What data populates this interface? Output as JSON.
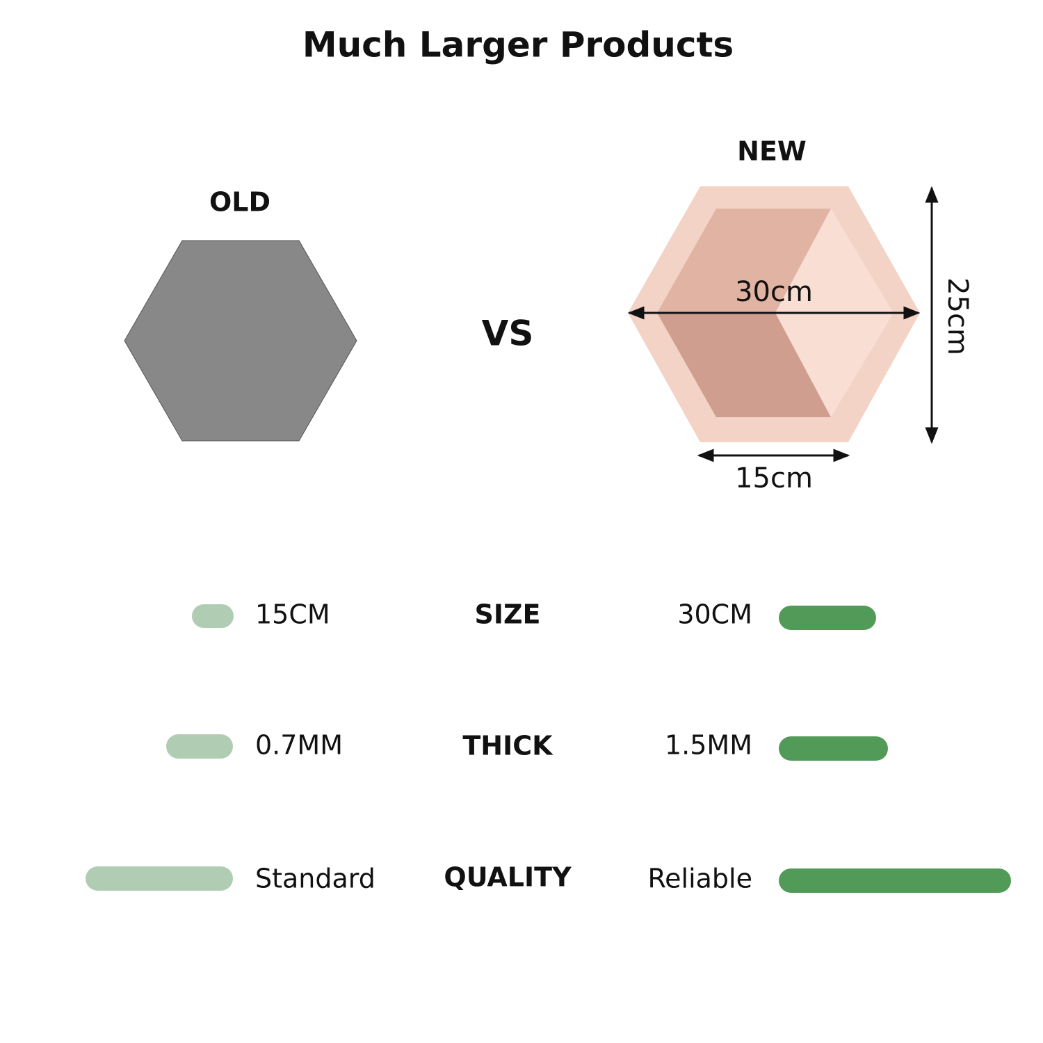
{
  "title": "Much Larger Products",
  "old": {
    "label": "OLD"
  },
  "vs": "VS",
  "new": {
    "label": "NEW",
    "dimensions": {
      "width": "30cm",
      "height": "25cm",
      "side": "15cm"
    }
  },
  "comparison": [
    {
      "label": "SIZE",
      "old": "15CM",
      "new": "30CM"
    },
    {
      "label": "THICK",
      "old": "0.7MM",
      "new": "1.5MM"
    },
    {
      "label": "QUALITY",
      "old": "Standard",
      "new": "Reliable"
    }
  ]
}
